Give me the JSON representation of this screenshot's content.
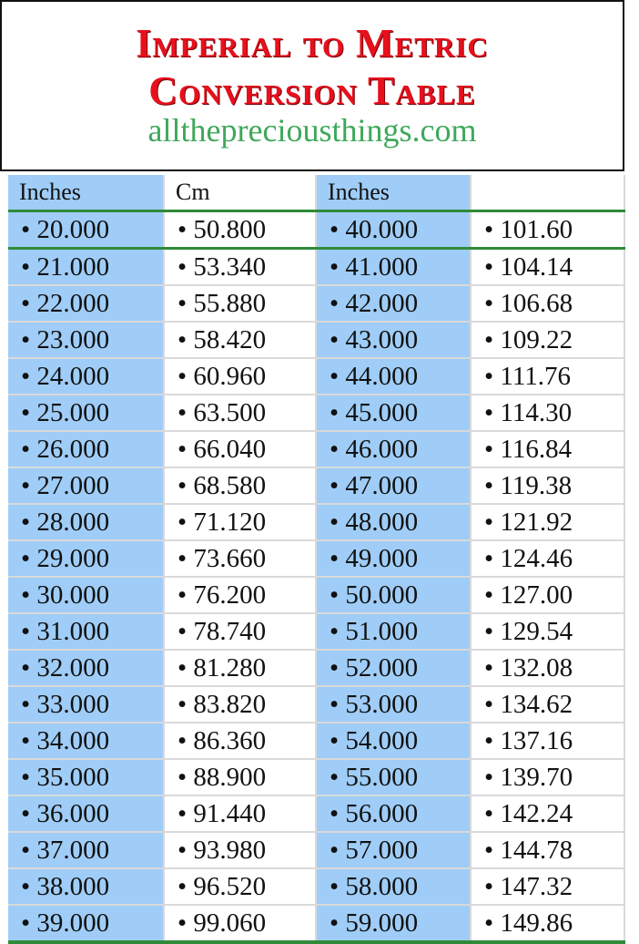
{
  "title_line1": "Imperial to Metric",
  "title_line2": "Conversion Table",
  "website": "allthepreciousthings.com",
  "colors": {
    "title": "#e8101c",
    "website": "#3fa85a",
    "inches_column_bg": "#9fcdf7",
    "rule": "#2f8a3a"
  },
  "headers": [
    "Inches",
    "Cm",
    "Inches",
    ""
  ],
  "bullet": "•",
  "rows": [
    [
      "20.000",
      "50.800",
      "40.000",
      "101.60"
    ],
    [
      "21.000",
      "53.340",
      "41.000",
      "104.14"
    ],
    [
      "22.000",
      "55.880",
      "42.000",
      "106.68"
    ],
    [
      "23.000",
      "58.420",
      "43.000",
      "109.22"
    ],
    [
      "24.000",
      "60.960",
      "44.000",
      "111.76"
    ],
    [
      "25.000",
      "63.500",
      "45.000",
      "114.30"
    ],
    [
      "26.000",
      "66.040",
      "46.000",
      "116.84"
    ],
    [
      "27.000",
      "68.580",
      "47.000",
      "119.38"
    ],
    [
      "28.000",
      "71.120",
      "48.000",
      "121.92"
    ],
    [
      "29.000",
      "73.660",
      "49.000",
      "124.46"
    ],
    [
      "30.000",
      "76.200",
      "50.000",
      "127.00"
    ],
    [
      "31.000",
      "78.740",
      "51.000",
      "129.54"
    ],
    [
      "32.000",
      "81.280",
      "52.000",
      "132.08"
    ],
    [
      "33.000",
      "83.820",
      "53.000",
      "134.62"
    ],
    [
      "34.000",
      "86.360",
      "54.000",
      "137.16"
    ],
    [
      "35.000",
      "88.900",
      "55.000",
      "139.70"
    ],
    [
      "36.000",
      "91.440",
      "56.000",
      "142.24"
    ],
    [
      "37.000",
      "93.980",
      "57.000",
      "144.78"
    ],
    [
      "38.000",
      "96.520",
      "58.000",
      "147.32"
    ],
    [
      "39.000",
      "99.060",
      "59.000",
      "149.86"
    ]
  ]
}
